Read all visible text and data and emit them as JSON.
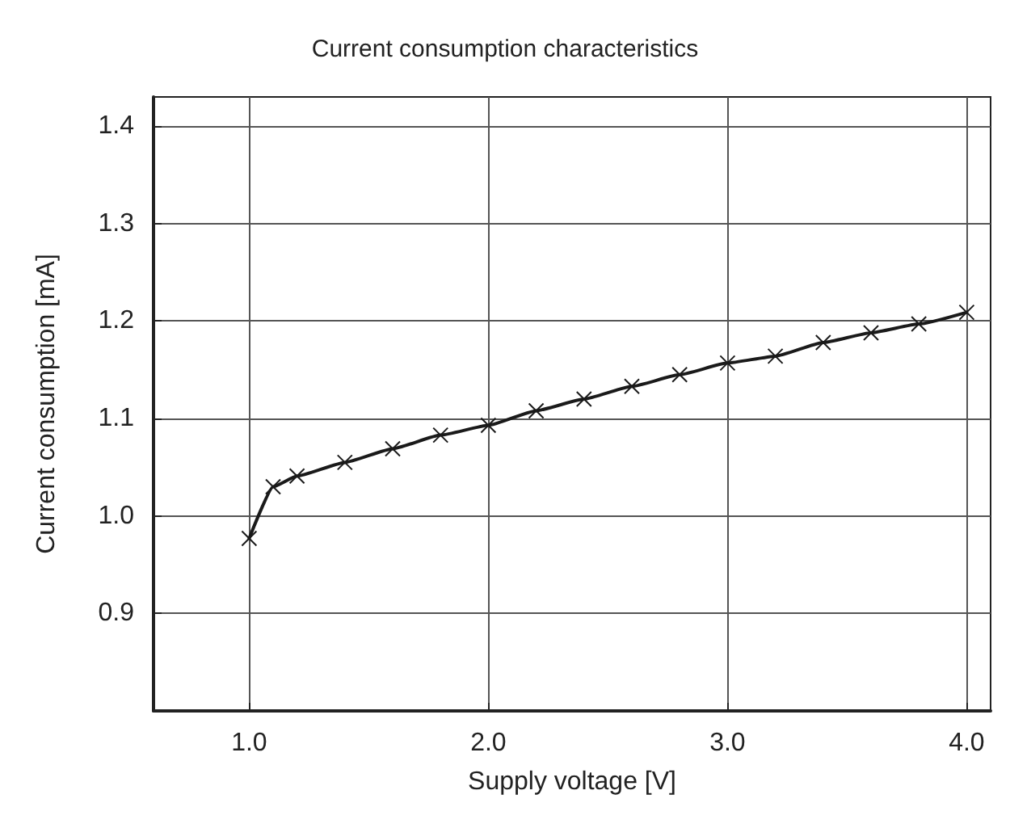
{
  "chart_data": {
    "type": "line",
    "title": "Current consumption characteristics",
    "xlabel": "Supply voltage [V]",
    "ylabel": "Current consumption [mA]",
    "x": [
      1.0,
      1.1,
      1.2,
      1.4,
      1.6,
      1.8,
      2.0,
      2.2,
      2.4,
      2.6,
      2.8,
      3.0,
      3.2,
      3.4,
      3.6,
      3.8,
      4.0
    ],
    "series": [
      {
        "color": "#1a1a1a",
        "values": [
          0.977,
          1.03,
          1.041,
          1.055,
          1.069,
          1.083,
          1.093,
          1.108,
          1.12,
          1.133,
          1.145,
          1.157,
          1.164,
          1.178,
          1.188,
          1.197,
          1.209
        ]
      }
    ],
    "xlim": [
      0.6,
      4.1
    ],
    "xticks": [
      {
        "value": 1.0,
        "label": "1.0"
      },
      {
        "value": 2.0,
        "label": "2.0"
      },
      {
        "value": 3.0,
        "label": "3.0"
      },
      {
        "value": 4.0,
        "label": "4.0"
      }
    ],
    "ylim": [
      0.8,
      1.43
    ],
    "yticks": [
      0.9,
      {
        "value": 1.0,
        "label": "1.0"
      },
      1.1,
      1.2,
      1.3,
      1.4
    ],
    "grid": true,
    "marker": "cross",
    "line_style": "solid"
  }
}
